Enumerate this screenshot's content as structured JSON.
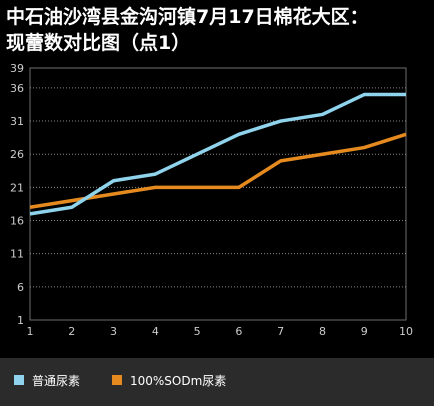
{
  "chart_data": {
    "type": "line",
    "title_lines": [
      "中石油沙湾县金沟河镇7月17日棉花大区：",
      "现蕾数对比图（点1）"
    ],
    "x": [
      1,
      2,
      3,
      4,
      5,
      6,
      7,
      8,
      9,
      10
    ],
    "x_tick_labels": [
      "1",
      "2",
      "3",
      "4",
      "5",
      "6",
      "7",
      "8",
      "9",
      "10"
    ],
    "y_ticks": [
      1,
      6,
      11,
      16,
      21,
      26,
      31,
      36,
      39
    ],
    "y_tick_labels": [
      "1",
      "6",
      "11",
      "16",
      "21",
      "26",
      "31",
      "36",
      "39"
    ],
    "ylim": [
      1,
      39
    ],
    "grid": "horizontal dotted",
    "legend_position": "bottom",
    "series": [
      {
        "name": "普通尿素",
        "color": "#8fd3ec",
        "values": [
          17,
          18,
          22,
          23,
          26,
          29,
          31,
          32,
          35,
          35
        ]
      },
      {
        "name": "100%SODm尿素",
        "color": "#e58a1f",
        "values": [
          18,
          19,
          20,
          21,
          21,
          21,
          25,
          26,
          27,
          29
        ]
      }
    ]
  }
}
